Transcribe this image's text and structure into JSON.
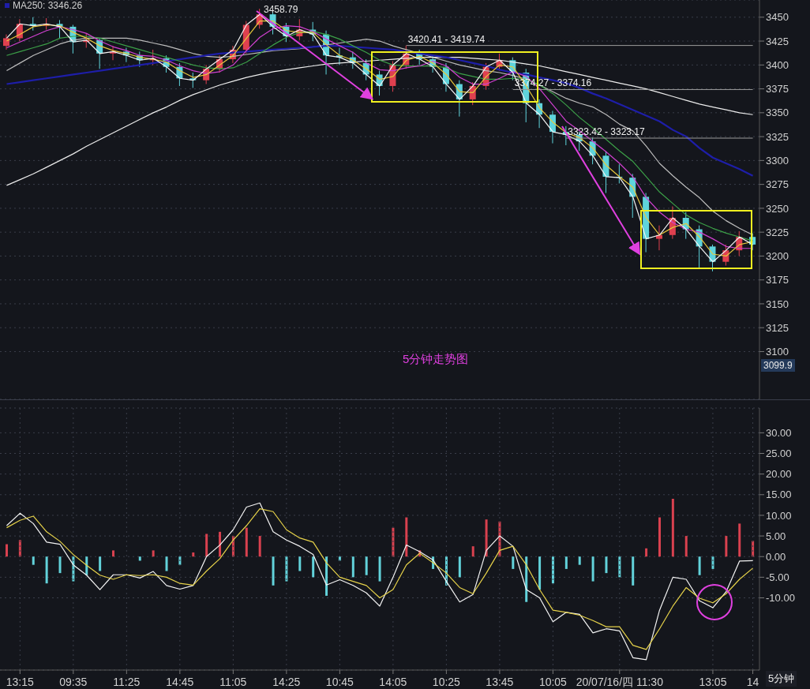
{
  "chart_data": [
    {
      "type": "candlestick",
      "categories": [
        null,
        null,
        null,
        null,
        null,
        null,
        null,
        null,
        null,
        null,
        null,
        null,
        null,
        null,
        null,
        null,
        null,
        null,
        null,
        null,
        null,
        null,
        null,
        null,
        null,
        null,
        null,
        null,
        null,
        null,
        null,
        null,
        null,
        null,
        null,
        null,
        null,
        null,
        null,
        null,
        null,
        null,
        null,
        null,
        null,
        null,
        null,
        null,
        null,
        null,
        null,
        null,
        null,
        null,
        null,
        null,
        null
      ],
      "ohlc": [
        [
          3420,
          3432,
          3416,
          3428
        ],
        [
          3428,
          3448,
          3425,
          3443
        ],
        [
          3443,
          3450,
          3436,
          3441
        ],
        [
          3441,
          3449,
          3437,
          3443
        ],
        [
          3443,
          3447,
          3428,
          3440
        ],
        [
          3440,
          3442,
          3412,
          3424
        ],
        [
          3424,
          3433,
          3418,
          3426
        ],
        [
          3426,
          3428,
          3396,
          3412
        ],
        [
          3412,
          3420,
          3405,
          3414
        ],
        [
          3414,
          3418,
          3403,
          3410
        ],
        [
          3410,
          3414,
          3398,
          3405
        ],
        [
          3405,
          3416,
          3400,
          3407
        ],
        [
          3407,
          3410,
          3392,
          3398
        ],
        [
          3398,
          3402,
          3378,
          3386
        ],
        [
          3386,
          3392,
          3376,
          3384
        ],
        [
          3384,
          3400,
          3380,
          3396
        ],
        [
          3396,
          3410,
          3392,
          3406
        ],
        [
          3406,
          3420,
          3402,
          3416
        ],
        [
          3416,
          3446,
          3412,
          3442
        ],
        [
          3442,
          3458.79,
          3438,
          3453
        ],
        [
          3453,
          3455,
          3432,
          3440
        ],
        [
          3440,
          3444,
          3424,
          3430
        ],
        [
          3430,
          3448,
          3426,
          3437
        ],
        [
          3437,
          3445,
          3425,
          3432
        ],
        [
          3432,
          3436,
          3390,
          3410
        ],
        [
          3410,
          3418,
          3400,
          3408
        ],
        [
          3408,
          3414,
          3396,
          3402
        ],
        [
          3402,
          3406,
          3384,
          3390
        ],
        [
          3390,
          3394,
          3368,
          3378
        ],
        [
          3378,
          3404,
          3372,
          3400
        ],
        [
          3400,
          3420.41,
          3396,
          3412
        ],
        [
          3412,
          3416,
          3400,
          3406
        ],
        [
          3406,
          3410,
          3392,
          3398
        ],
        [
          3398,
          3402,
          3372,
          3380
        ],
        [
          3380,
          3384,
          3346,
          3364
        ],
        [
          3364,
          3382,
          3358,
          3378
        ],
        [
          3378,
          3402,
          3374,
          3398
        ],
        [
          3398,
          3412,
          3394,
          3405
        ],
        [
          3405,
          3408,
          3384,
          3392
        ],
        [
          3392,
          3396,
          3340,
          3360
        ],
        [
          3360,
          3364,
          3334,
          3348
        ],
        [
          3348,
          3352,
          3318,
          3330
        ],
        [
          3330,
          3336,
          3316,
          3327
        ],
        [
          3327,
          3330,
          3310,
          3320
        ],
        [
          3320,
          3324,
          3296,
          3305
        ],
        [
          3305,
          3310,
          3266,
          3283
        ],
        [
          3283,
          3296,
          3276,
          3282
        ],
        [
          3282,
          3286,
          3240,
          3262
        ],
        [
          3262,
          3266,
          3204,
          3218
        ],
        [
          3218,
          3232,
          3206,
          3222
        ],
        [
          3222,
          3252,
          3218,
          3240
        ],
        [
          3240,
          3246,
          3218,
          3228
        ],
        [
          3228,
          3232,
          3188,
          3210
        ],
        [
          3210,
          3212,
          3184,
          3194
        ],
        [
          3194,
          3212,
          3190,
          3206
        ],
        [
          3206,
          3226,
          3200,
          3220
        ],
        [
          3220,
          3224,
          3206,
          3212
        ]
      ],
      "colors": [
        "#e0404f",
        "#e0404f",
        "#5fd4dc",
        "#e0404f",
        "#5fd4dc",
        "#5fd4dc",
        "#e0404f",
        "#5fd4dc",
        "#e0404f",
        "#5fd4dc",
        "#5fd4dc",
        "#e0404f",
        "#5fd4dc",
        "#5fd4dc",
        "#5fd4dc",
        "#e0404f",
        "#e0404f",
        "#e0404f",
        "#e0404f",
        "#e0404f",
        "#5fd4dc",
        "#5fd4dc",
        "#e0404f",
        "#5fd4dc",
        "#5fd4dc",
        "#5fd4dc",
        "#5fd4dc",
        "#5fd4dc",
        "#5fd4dc",
        "#e0404f",
        "#e0404f",
        "#5fd4dc",
        "#5fd4dc",
        "#5fd4dc",
        "#5fd4dc",
        "#e0404f",
        "#e0404f",
        "#e0404f",
        "#5fd4dc",
        "#5fd4dc",
        "#5fd4dc",
        "#5fd4dc",
        "#5fd4dc",
        "#5fd4dc",
        "#5fd4dc",
        "#5fd4dc",
        "#5fd4dc",
        "#5fd4dc",
        "#5fd4dc",
        "#e0404f",
        "#e0404f",
        "#5fd4dc",
        "#5fd4dc",
        "#5fd4dc",
        "#e0404f",
        "#e0404f",
        "#5fd4dc"
      ],
      "series": [
        {
          "type": "line",
          "color": "#bdbdbd",
          "values": [
            3394,
            3402,
            3410,
            3416,
            3422,
            3426,
            3428,
            3428,
            3428,
            3428,
            3426,
            3423,
            3420,
            3416,
            3412,
            3409,
            3408,
            3409,
            3411,
            3413,
            3415,
            3416,
            3417,
            3419,
            3421,
            3423,
            3425,
            3427,
            3425,
            3420,
            3416,
            3412,
            3408,
            3404,
            3400,
            3397,
            3394,
            3392,
            3389,
            3385,
            3379,
            3372,
            3365,
            3360,
            3356,
            3348,
            3338,
            3331,
            3315,
            3297,
            3284,
            3272,
            3261,
            3247,
            3237,
            3229,
            3222
          ]
        },
        {
          "type": "line",
          "color": "#ececec",
          "values": [
            3274,
            3280,
            3286,
            3293,
            3300,
            3307,
            3315,
            3322,
            3329,
            3336,
            3343,
            3350,
            3356,
            3363,
            3369,
            3374,
            3379,
            3383,
            3387,
            3390,
            3393,
            3395,
            3397,
            3399,
            3401,
            3402,
            3403,
            3404,
            3405,
            3406,
            3407,
            3408,
            3408,
            3408,
            3408,
            3407,
            3406,
            3405,
            3403,
            3401,
            3399,
            3396,
            3393,
            3390,
            3387,
            3384,
            3381,
            3378,
            3375,
            3371,
            3367,
            3363,
            3359,
            3356,
            3353,
            3350,
            3348
          ]
        },
        {
          "type": "line",
          "name": "MA250: 3346.26",
          "color": "#1e1ea8",
          "values": [
            3380,
            3382,
            3384,
            3386,
            3388,
            3390,
            3392,
            3394,
            3396,
            3398,
            3400,
            3402,
            3404,
            3406,
            3408,
            3410,
            3412,
            3413,
            3414,
            3415,
            3416,
            3417,
            3418,
            3419,
            3420,
            3420,
            3419,
            3418,
            3417,
            3416,
            3414,
            3412,
            3410,
            3408,
            3405,
            3402,
            3399,
            3395,
            3392,
            3390,
            3387,
            3384,
            3381,
            3376,
            3370,
            3365,
            3359,
            3353,
            3347,
            3341,
            3332,
            3325,
            3313,
            3303,
            3297,
            3291,
            3284
          ]
        },
        {
          "type": "line",
          "color": "#3ca048",
          "values": [
            3410,
            3414,
            3418,
            3422,
            3428,
            3430,
            3430,
            3428,
            3424,
            3420,
            3416,
            3412,
            3408,
            3404,
            3400,
            3397,
            3396,
            3397,
            3403,
            3412,
            3421,
            3429,
            3434,
            3435,
            3432,
            3427,
            3420,
            3413,
            3405,
            3400,
            3399,
            3399,
            3399,
            3397,
            3391,
            3388,
            3385,
            3385,
            3386,
            3385,
            3379,
            3370,
            3358,
            3345,
            3334,
            3322,
            3310,
            3299,
            3283,
            3267,
            3255,
            3243,
            3235,
            3229,
            3224,
            3220,
            3216
          ]
        },
        {
          "type": "line",
          "color": "#d040d0",
          "values": [
            3418,
            3424,
            3430,
            3436,
            3440,
            3437,
            3433,
            3425,
            3419,
            3415,
            3410,
            3409,
            3405,
            3399,
            3394,
            3391,
            3393,
            3400,
            3415,
            3429,
            3438,
            3441,
            3440,
            3435,
            3427,
            3420,
            3413,
            3402,
            3395,
            3394,
            3397,
            3399,
            3404,
            3399,
            3387,
            3380,
            3380,
            3386,
            3393,
            3388,
            3375,
            3358,
            3341,
            3331,
            3320,
            3309,
            3297,
            3283,
            3261,
            3246,
            3235,
            3228,
            3225,
            3218,
            3210,
            3208,
            3208
          ]
        },
        {
          "type": "line",
          "color": "#e8c83c",
          "values": [
            3425,
            3432,
            3440,
            3442,
            3441,
            3434,
            3428,
            3420,
            3415,
            3412,
            3408,
            3406,
            3403,
            3394,
            3387,
            3390,
            3400,
            3410,
            3428,
            3446,
            3446,
            3436,
            3434,
            3434,
            3421,
            3410,
            3405,
            3396,
            3385,
            3388,
            3405,
            3409,
            3402,
            3390,
            3372,
            3371,
            3388,
            3400,
            3398,
            3378,
            3355,
            3340,
            3329,
            3324,
            3313,
            3295,
            3283,
            3272,
            3240,
            3222,
            3230,
            3234,
            3220,
            3202,
            3200,
            3212,
            3215
          ]
        },
        {
          "type": "line",
          "color": "#f4f4f4",
          "values": [
            3428,
            3443,
            3441,
            3443,
            3440,
            3424,
            3426,
            3412,
            3414,
            3410,
            3405,
            3407,
            3398,
            3386,
            3384,
            3396,
            3406,
            3416,
            3442,
            3453,
            3440,
            3430,
            3437,
            3432,
            3410,
            3408,
            3402,
            3390,
            3378,
            3400,
            3412,
            3406,
            3398,
            3380,
            3364,
            3378,
            3398,
            3405,
            3392,
            3360,
            3348,
            3330,
            3327,
            3320,
            3305,
            3283,
            3282,
            3262,
            3218,
            3222,
            3240,
            3228,
            3210,
            3194,
            3206,
            3220,
            3212
          ]
        }
      ],
      "ylim": [
        3050,
        3468
      ],
      "yticks": [
        3100,
        3125,
        3150,
        3175,
        3200,
        3225,
        3250,
        3275,
        3300,
        3325,
        3350,
        3375,
        3400,
        3425,
        3450
      ],
      "grid": "y",
      "legend": "top left",
      "tick_labels": "y",
      "ref_lines": [
        {
          "axis": "y",
          "value": 3420.41,
          "label": "3420.41 - 3419.74",
          "color": "#9a9a9a"
        },
        {
          "axis": "y",
          "value": 3374.27,
          "label": "3374.27 - 3374.16",
          "color": "#9a9a9a"
        },
        {
          "axis": "y",
          "value": 3323.42,
          "label": "3323.42 - 3323.17",
          "color": "#9a9a9a"
        }
      ],
      "annotations": [
        "3458.79",
        "5分钟走势图",
        "3099.9"
      ]
    },
    {
      "type": "bar",
      "categories": [
        null,
        "13:15",
        null,
        null,
        null,
        "09:35",
        null,
        null,
        null,
        "11:25",
        null,
        null,
        null,
        "14:45",
        null,
        null,
        null,
        "11:05",
        null,
        null,
        null,
        "14:25",
        null,
        null,
        null,
        "10:45",
        null,
        null,
        null,
        "14:05",
        null,
        null,
        null,
        "10:25",
        null,
        null,
        null,
        "13:45",
        null,
        null,
        null,
        "10:05",
        null,
        null,
        null,
        null,
        "20/07/16/四 11:30",
        null,
        null,
        null,
        null,
        null,
        null,
        "13:05",
        null,
        null,
        "14"
      ],
      "series": [
        {
          "type": "bar",
          "values": [
            3.0,
            4.0,
            -2.0,
            -6.5,
            -4.0,
            -6.0,
            -4.5,
            -3.5,
            1.5,
            0,
            -1.0,
            1.5,
            -3.5,
            -2.0,
            1.0,
            5.5,
            6.0,
            5.0,
            7.0,
            5.0,
            -7.0,
            -6.0,
            -3.5,
            -5.0,
            -9.5,
            -1.0,
            -5.0,
            -4.5,
            -6.0,
            7.0,
            9.5,
            1.5,
            -3.0,
            -7.0,
            -5.0,
            2.5,
            9.0,
            8.5,
            -3.0,
            -11.0,
            -8.0,
            -6.5,
            -3.0,
            -2.0,
            -6.0,
            -4.0,
            -5.0,
            -7.0,
            2.0,
            9.5,
            14.0,
            5.0,
            -4.5,
            -3.0,
            5.0,
            8.0,
            3.8
          ],
          "colors": [
            "#d9414f",
            "#d9414f",
            "#62d2da",
            "#62d2da",
            "#62d2da",
            "#62d2da",
            "#62d2da",
            "#62d2da",
            "#d9414f",
            "#62d2da",
            "#62d2da",
            "#d9414f",
            "#62d2da",
            "#62d2da",
            "#d9414f",
            "#d9414f",
            "#d9414f",
            "#d9414f",
            "#d9414f",
            "#d9414f",
            "#62d2da",
            "#62d2da",
            "#62d2da",
            "#62d2da",
            "#62d2da",
            "#62d2da",
            "#62d2da",
            "#62d2da",
            "#62d2da",
            "#d9414f",
            "#d9414f",
            "#d9414f",
            "#62d2da",
            "#62d2da",
            "#62d2da",
            "#d9414f",
            "#d9414f",
            "#d9414f",
            "#62d2da",
            "#62d2da",
            "#62d2da",
            "#62d2da",
            "#62d2da",
            "#62d2da",
            "#62d2da",
            "#62d2da",
            "#62d2da",
            "#62d2da",
            "#d9414f",
            "#d9414f",
            "#d9414f",
            "#d9414f",
            "#62d2da",
            "#62d2da",
            "#d9414f",
            "#d9414f",
            "#d9414f"
          ]
        },
        {
          "type": "line",
          "color": "#f4f4f4",
          "values": [
            7.5,
            10.5,
            8.0,
            3.5,
            3.0,
            -2.0,
            -4.5,
            -8.0,
            -4.4,
            -4.4,
            -5.2,
            -3.6,
            -7.0,
            -7.9,
            -7.0,
            0.0,
            2.8,
            6.5,
            12.0,
            13.0,
            6.0,
            4.0,
            2.5,
            0.5,
            -6.9,
            -5.6,
            -7.0,
            -8.8,
            -12.0,
            -5.0,
            2.8,
            1.2,
            -0.8,
            -6.0,
            -11.0,
            -9.2,
            1.5,
            5.0,
            2.5,
            -8.0,
            -10.0,
            -15.8,
            -13.5,
            -14.0,
            -18.5,
            -17.5,
            -18.0,
            -24.5,
            -25.0,
            -13.0,
            -5.0,
            -5.5,
            -10.7,
            -12.4,
            -8.5,
            -1.1,
            -1.0
          ]
        },
        {
          "type": "line",
          "color": "#e6d24a",
          "values": [
            7.0,
            8.8,
            9.8,
            6.0,
            3.7,
            0.5,
            -2.1,
            -4.5,
            -5.5,
            -4.4,
            -4.6,
            -4.4,
            -5.0,
            -6.5,
            -6.9,
            -3.5,
            -0.5,
            4.0,
            7.5,
            11.6,
            10.9,
            6.5,
            4.5,
            3.5,
            -1.5,
            -5.0,
            -6.0,
            -7.0,
            -10.0,
            -8.0,
            -2.0,
            0.8,
            -1.5,
            -4.0,
            -7.5,
            -9.0,
            -4.0,
            1.5,
            2.5,
            -2.0,
            -8.0,
            -13.0,
            -13.5,
            -14.2,
            -15.5,
            -17.0,
            -17.0,
            -21.5,
            -22.5,
            -17.5,
            -12.0,
            -7.5,
            -10.1,
            -11.2,
            -9.0,
            -5.5,
            -2.8
          ]
        }
      ],
      "ylim": [
        -27.5,
        36
      ],
      "yticks": [
        {
          "value": -10,
          "label": "-10.00"
        },
        {
          "value": -5,
          "label": "-5.00"
        },
        {
          "value": 0,
          "label": "0.00"
        },
        {
          "value": 5,
          "label": "5.00"
        },
        {
          "value": 10,
          "label": "10.00"
        },
        {
          "value": 15,
          "label": "15.00"
        },
        {
          "value": 20,
          "label": "20.00"
        },
        {
          "value": 25,
          "label": "25.00"
        },
        {
          "value": 30,
          "label": "30.00"
        }
      ],
      "grid": true,
      "annotations": [
        "5分钟"
      ]
    }
  ]
}
